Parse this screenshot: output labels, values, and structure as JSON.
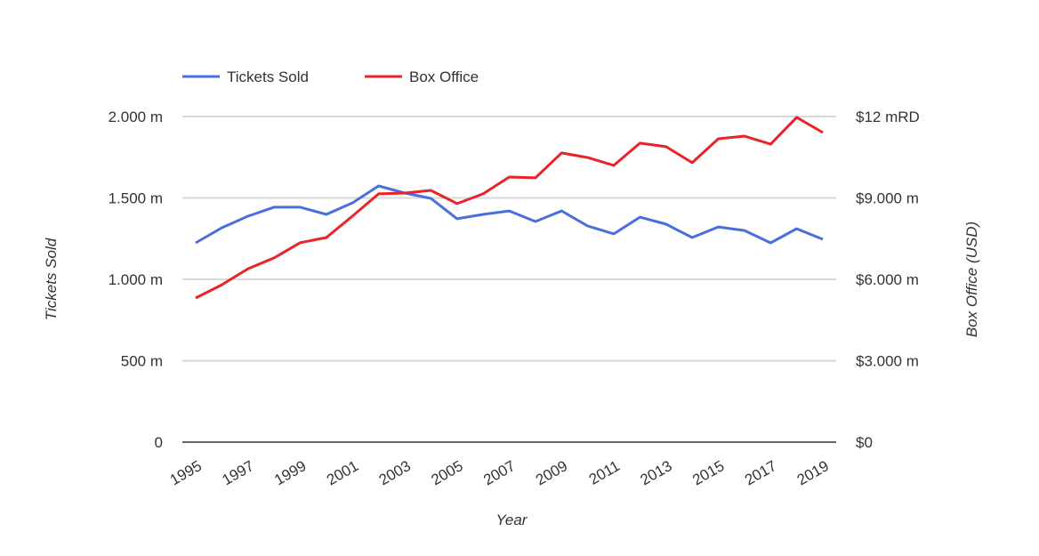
{
  "chart_data": {
    "type": "line",
    "title": "",
    "xlabel": "Year",
    "ylabel": "Tickets Sold",
    "y2label": "Box Office (USD)",
    "legend_position": "top-left",
    "grid": true,
    "x": [
      1995,
      1996,
      1997,
      1998,
      1999,
      2000,
      2001,
      2002,
      2003,
      2004,
      2005,
      2006,
      2007,
      2008,
      2009,
      2010,
      2011,
      2012,
      2013,
      2014,
      2015,
      2016,
      2017,
      2018,
      2019
    ],
    "x_tick_labels": [
      "1995",
      "1997",
      "1999",
      "2001",
      "2003",
      "2005",
      "2007",
      "2009",
      "2011",
      "2013",
      "2015",
      "2017",
      "2019"
    ],
    "ylim": [
      0,
      2000
    ],
    "y_tick_values": [
      0,
      500,
      1000,
      1500,
      2000
    ],
    "y_tick_labels": [
      "0",
      "500 m",
      "1.000 m",
      "1.500 m",
      "2.000 m"
    ],
    "y2lim": [
      0,
      12000
    ],
    "y2_tick_values": [
      0,
      3000,
      6000,
      9000,
      12000
    ],
    "y2_tick_labels": [
      "$0",
      "$3.000 m",
      "$6.000 m",
      "$9.000 m",
      "$12 mRD"
    ],
    "series": [
      {
        "name": "Tickets Sold",
        "axis": "left",
        "color": "#4a6fdc",
        "values": [
          1224,
          1317,
          1388,
          1443,
          1443,
          1399,
          1470,
          1574,
          1530,
          1497,
          1372,
          1399,
          1420,
          1355,
          1420,
          1328,
          1279,
          1382,
          1339,
          1257,
          1322,
          1300,
          1224,
          1311,
          1246
        ]
      },
      {
        "name": "Box Office",
        "axis": "right",
        "color": "#e8232a",
        "values": [
          5310,
          5800,
          6390,
          6790,
          7350,
          7540,
          8330,
          9150,
          9180,
          9280,
          8790,
          9150,
          9770,
          9740,
          10660,
          10490,
          10200,
          11020,
          10890,
          10300,
          11180,
          11280,
          10980,
          11970,
          11410
        ]
      }
    ]
  }
}
